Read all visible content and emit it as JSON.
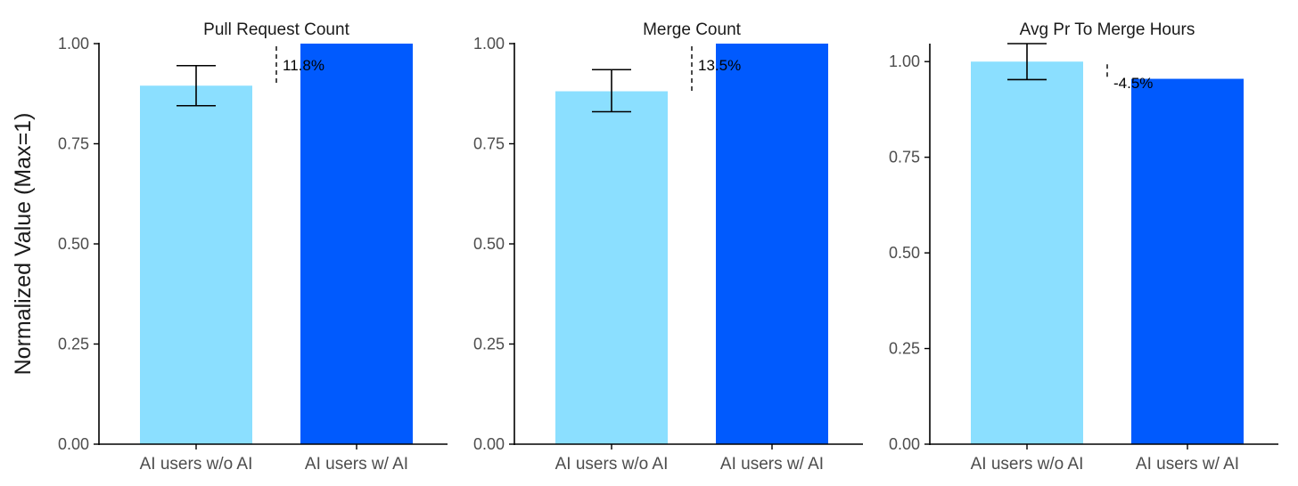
{
  "ylabel": "Normalized Value (Max=1)",
  "colors": {
    "without_ai": "#8bdfff",
    "with_ai": "#005afe",
    "axis": "#000000",
    "error_bar": "#000000"
  },
  "chart_data": [
    {
      "type": "bar",
      "title": "Pull Request Count",
      "categories": [
        "AI users w/o AI",
        "AI users w/ AI"
      ],
      "values": [
        0.895,
        1.0
      ],
      "error": {
        "category": "AI users w/o AI",
        "low": 0.845,
        "high": 0.945
      },
      "pct_change": "11.8%",
      "ylim": [
        0,
        1.0
      ],
      "yticks": [
        "0.00",
        "0.25",
        "0.50",
        "0.75",
        "1.00"
      ]
    },
    {
      "type": "bar",
      "title": "Merge Count",
      "categories": [
        "AI users w/o AI",
        "AI users w/ AI"
      ],
      "values": [
        0.881,
        1.0
      ],
      "error": {
        "category": "AI users w/o AI",
        "low": 0.83,
        "high": 0.935
      },
      "pct_change": "13.5%",
      "ylim": [
        0,
        1.0
      ],
      "yticks": [
        "0.00",
        "0.25",
        "0.50",
        "0.75",
        "1.00"
      ]
    },
    {
      "type": "bar",
      "title": "Avg Pr To Merge Hours",
      "categories": [
        "AI users w/o AI",
        "AI users w/ AI"
      ],
      "values": [
        1.0,
        0.955
      ],
      "error": {
        "category": "AI users w/o AI",
        "low": 0.953,
        "high": 1.047
      },
      "pct_change": "-4.5%",
      "ylim": [
        0,
        1.047
      ],
      "yticks": [
        "0.00",
        "0.25",
        "0.50",
        "0.75",
        "1.00"
      ]
    }
  ]
}
